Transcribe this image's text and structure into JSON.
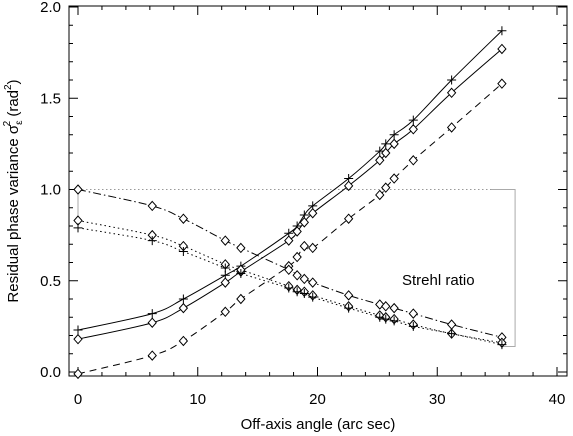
{
  "chart_data": {
    "type": "line",
    "xlabel": "Off-axis angle (arc sec)",
    "ylabel_parts": {
      "pre": "Residual phase variance σ",
      "sub": "ε",
      "sup": "2",
      "mid": " (rad",
      "sup2": "2",
      "post": ")"
    },
    "annotation": "Strehl ratio",
    "xlim": [
      0,
      40
    ],
    "ylim": [
      0,
      2.0
    ],
    "xticks": [
      "0",
      "10",
      "20",
      "30",
      "40"
    ],
    "yticks": [
      "0.0",
      "0.5",
      "1.0",
      "1.5",
      "2.0"
    ],
    "grid": false,
    "reference_box": {
      "x_min": 0,
      "x_max": 36.5,
      "y_min": 0.14,
      "y_max": 1.0,
      "top_line": 1.0
    },
    "series": [
      {
        "group": "variance",
        "style": "solid",
        "marker": "plus",
        "points": [
          [
            0,
            0.23
          ],
          [
            6.2,
            0.32
          ],
          [
            8.8,
            0.4
          ],
          [
            12.3,
            0.53
          ],
          [
            13.6,
            0.58
          ],
          [
            17.6,
            0.76
          ],
          [
            18.3,
            0.8
          ],
          [
            18.9,
            0.86
          ],
          [
            19.6,
            0.91
          ],
          [
            22.6,
            1.06
          ],
          [
            25.2,
            1.21
          ],
          [
            25.7,
            1.25
          ],
          [
            26.4,
            1.3
          ],
          [
            28.0,
            1.38
          ],
          [
            31.2,
            1.6
          ],
          [
            35.4,
            1.87
          ]
        ]
      },
      {
        "group": "variance",
        "style": "solid",
        "marker": "diamond",
        "points": [
          [
            0,
            0.18
          ],
          [
            6.2,
            0.27
          ],
          [
            8.8,
            0.35
          ],
          [
            12.3,
            0.49
          ],
          [
            13.6,
            0.55
          ],
          [
            17.6,
            0.72
          ],
          [
            18.3,
            0.77
          ],
          [
            18.9,
            0.82
          ],
          [
            19.6,
            0.87
          ],
          [
            22.6,
            1.02
          ],
          [
            25.2,
            1.16
          ],
          [
            25.7,
            1.2
          ],
          [
            26.4,
            1.25
          ],
          [
            28.0,
            1.33
          ],
          [
            31.2,
            1.53
          ],
          [
            35.4,
            1.77
          ]
        ]
      },
      {
        "group": "variance",
        "style": "dashed",
        "marker": "diamond",
        "points": [
          [
            0,
            -0.01
          ],
          [
            6.2,
            0.09
          ],
          [
            8.8,
            0.17
          ],
          [
            12.3,
            0.33
          ],
          [
            13.6,
            0.4
          ],
          [
            17.6,
            0.58
          ],
          [
            18.3,
            0.63
          ],
          [
            18.9,
            0.69
          ],
          [
            19.6,
            0.68
          ],
          [
            22.6,
            0.84
          ],
          [
            25.2,
            0.97
          ],
          [
            25.7,
            1.01
          ],
          [
            26.4,
            1.06
          ],
          [
            28.0,
            1.16
          ],
          [
            31.2,
            1.34
          ],
          [
            35.4,
            1.58
          ]
        ]
      },
      {
        "group": "strehl",
        "style": "dashdot",
        "marker": "diamond",
        "points": [
          [
            0,
            1.0
          ],
          [
            6.2,
            0.91
          ],
          [
            8.8,
            0.84
          ],
          [
            12.3,
            0.72
          ],
          [
            13.6,
            0.68
          ],
          [
            17.6,
            0.56
          ],
          [
            18.3,
            0.53
          ],
          [
            18.9,
            0.51
          ],
          [
            19.6,
            0.49
          ],
          [
            22.6,
            0.42
          ],
          [
            25.2,
            0.37
          ],
          [
            25.7,
            0.36
          ],
          [
            26.4,
            0.35
          ],
          [
            28.0,
            0.32
          ],
          [
            31.2,
            0.26
          ],
          [
            35.4,
            0.19
          ]
        ]
      },
      {
        "group": "strehl",
        "style": "dotted",
        "marker": "diamond",
        "points": [
          [
            0,
            0.83
          ],
          [
            6.2,
            0.75
          ],
          [
            8.8,
            0.69
          ],
          [
            12.3,
            0.59
          ],
          [
            13.6,
            0.56
          ],
          [
            17.6,
            0.47
          ],
          [
            18.3,
            0.45
          ],
          [
            18.9,
            0.44
          ],
          [
            19.6,
            0.42
          ],
          [
            22.6,
            0.36
          ],
          [
            25.2,
            0.31
          ],
          [
            25.7,
            0.3
          ],
          [
            26.4,
            0.29
          ],
          [
            28.0,
            0.26
          ],
          [
            31.2,
            0.21
          ],
          [
            35.4,
            0.16
          ]
        ]
      },
      {
        "group": "strehl",
        "style": "dotted",
        "marker": "plus",
        "points": [
          [
            0,
            0.79
          ],
          [
            6.2,
            0.72
          ],
          [
            8.8,
            0.66
          ],
          [
            12.3,
            0.57
          ],
          [
            13.6,
            0.54
          ],
          [
            17.6,
            0.46
          ],
          [
            18.3,
            0.44
          ],
          [
            18.9,
            0.43
          ],
          [
            19.6,
            0.41
          ],
          [
            22.6,
            0.35
          ],
          [
            25.2,
            0.3
          ],
          [
            25.7,
            0.29
          ],
          [
            26.4,
            0.28
          ],
          [
            28.0,
            0.25
          ],
          [
            31.2,
            0.21
          ],
          [
            35.4,
            0.15
          ]
        ]
      }
    ]
  }
}
